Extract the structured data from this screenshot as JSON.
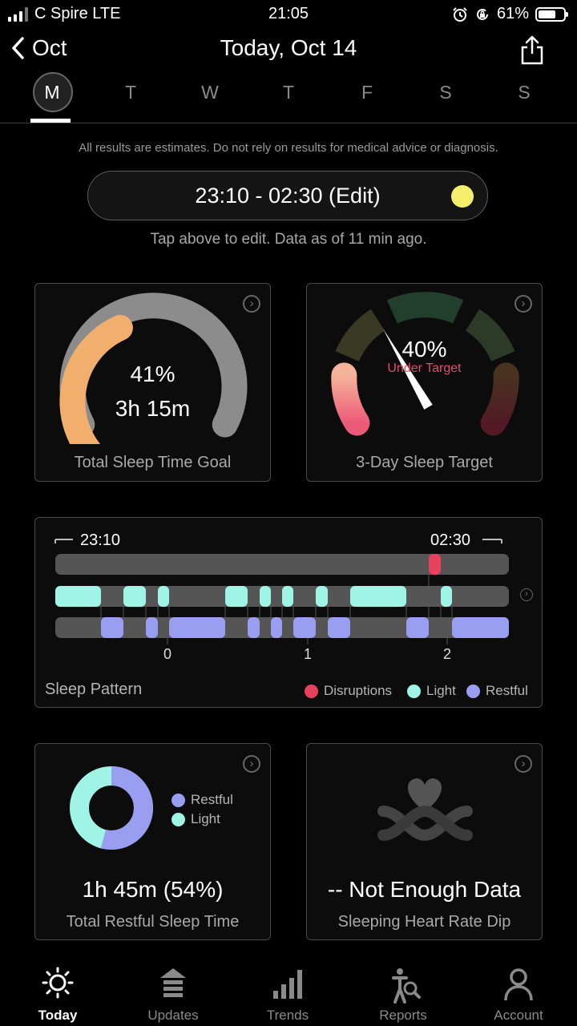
{
  "status_bar": {
    "carrier": "C Spire LTE",
    "time": "21:05",
    "battery": "61%",
    "icons": [
      "signal-icon",
      "alarm-icon",
      "rotation-lock-icon",
      "battery-icon"
    ]
  },
  "header": {
    "back_label": "Oct",
    "title": "Today, Oct 14",
    "share_icon": "share-icon"
  },
  "week": {
    "days": [
      "M",
      "T",
      "W",
      "T",
      "F",
      "S",
      "S"
    ],
    "selected_index": 0
  },
  "disclaimer": "All results are estimates. Do not rely on results for medical advice or diagnosis.",
  "sleep_window": {
    "label": "23:10 - 02:30 (Edit)",
    "hint": "Tap above to edit. Data as of 11 min ago.",
    "icon": "moon-icon",
    "icon_color": "#f3ee6b"
  },
  "total_sleep": {
    "percent": "41%",
    "duration": "3h 15m",
    "label": "Total Sleep Time Goal",
    "fraction": 0.41,
    "colors": {
      "fill": "#f2ae6c",
      "track": "#8c8c8c"
    }
  },
  "sleep_target": {
    "percent": "40%",
    "status": "Under Target",
    "label": "3-Day Sleep Target",
    "fraction": 0.4,
    "colors": {
      "status": "#e7496a"
    }
  },
  "sleep_pattern": {
    "label": "Sleep Pattern",
    "start": "23:10",
    "end": "02:30",
    "ticks": [
      "0",
      "1",
      "2"
    ],
    "legend": [
      {
        "name": "Disruptions",
        "color": "#e8405f"
      },
      {
        "name": "Light",
        "color": "#9ff4e6"
      },
      {
        "name": "Restful",
        "color": "#9a9ef0"
      }
    ]
  },
  "restful_sleep": {
    "value": "1h 45m (54%)",
    "label": "Total Restful Sleep Time",
    "restful_fraction": 0.54,
    "legend": [
      {
        "name": "Restful",
        "color": "#9a9ef0"
      },
      {
        "name": "Light",
        "color": "#9ff4e6"
      }
    ]
  },
  "heart_rate": {
    "value": "-- Not Enough Data",
    "label": "Sleeping Heart Rate Dip",
    "icon": "heart-rate-dip-icon"
  },
  "tabs": [
    {
      "label": "Today",
      "icon": "sun-icon",
      "active": true
    },
    {
      "label": "Updates",
      "icon": "updates-icon",
      "active": false
    },
    {
      "label": "Trends",
      "icon": "trends-icon",
      "active": false
    },
    {
      "label": "Reports",
      "icon": "reports-icon",
      "active": false
    },
    {
      "label": "Account",
      "icon": "account-icon",
      "active": false
    }
  ]
}
